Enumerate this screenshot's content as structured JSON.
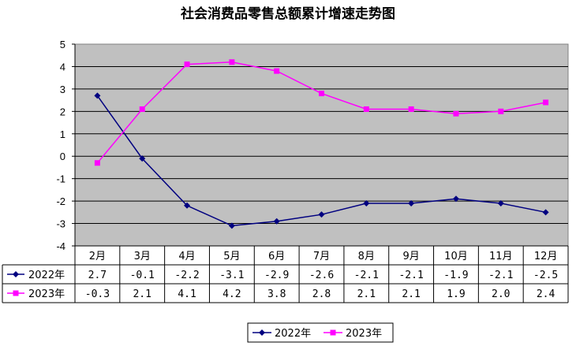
{
  "chart_data": {
    "type": "line",
    "title": "社会消费品零售总额累计增速走势图",
    "categories": [
      "2月",
      "3月",
      "4月",
      "5月",
      "6月",
      "7月",
      "8月",
      "9月",
      "10月",
      "11月",
      "12月"
    ],
    "series": [
      {
        "name": "2022年",
        "color": "#000080",
        "marker": "diamond",
        "values": [
          2.7,
          -0.1,
          -2.2,
          -3.1,
          -2.9,
          -2.6,
          -2.1,
          -2.1,
          -1.9,
          -2.1,
          -2.5
        ],
        "labels": [
          "2.7",
          "-0.1",
          "-2.2",
          "-3.1",
          "-2.9",
          "-2.6",
          "-2.1",
          "-2.1",
          "-1.9",
          "-2.1",
          "-2.5"
        ]
      },
      {
        "name": "2023年",
        "color": "#FF00FF",
        "marker": "square",
        "values": [
          -0.3,
          2.1,
          4.1,
          4.2,
          3.8,
          2.8,
          2.1,
          2.1,
          1.9,
          2.0,
          2.4
        ],
        "labels": [
          "-0.3",
          "2.1",
          "4.1",
          "4.2",
          "3.8",
          "2.8",
          "2.1",
          "2.1",
          "1.9",
          "2.0",
          "2.4"
        ]
      }
    ],
    "ylim": [
      -4,
      5
    ],
    "yticks": [
      5,
      4,
      3,
      2,
      1,
      0,
      -1,
      -2,
      -3,
      -4
    ],
    "xlabel": "",
    "ylabel": "",
    "grid": true,
    "plot_background": "#C0C0C0",
    "legend": "bottom-center",
    "data_table": true
  }
}
